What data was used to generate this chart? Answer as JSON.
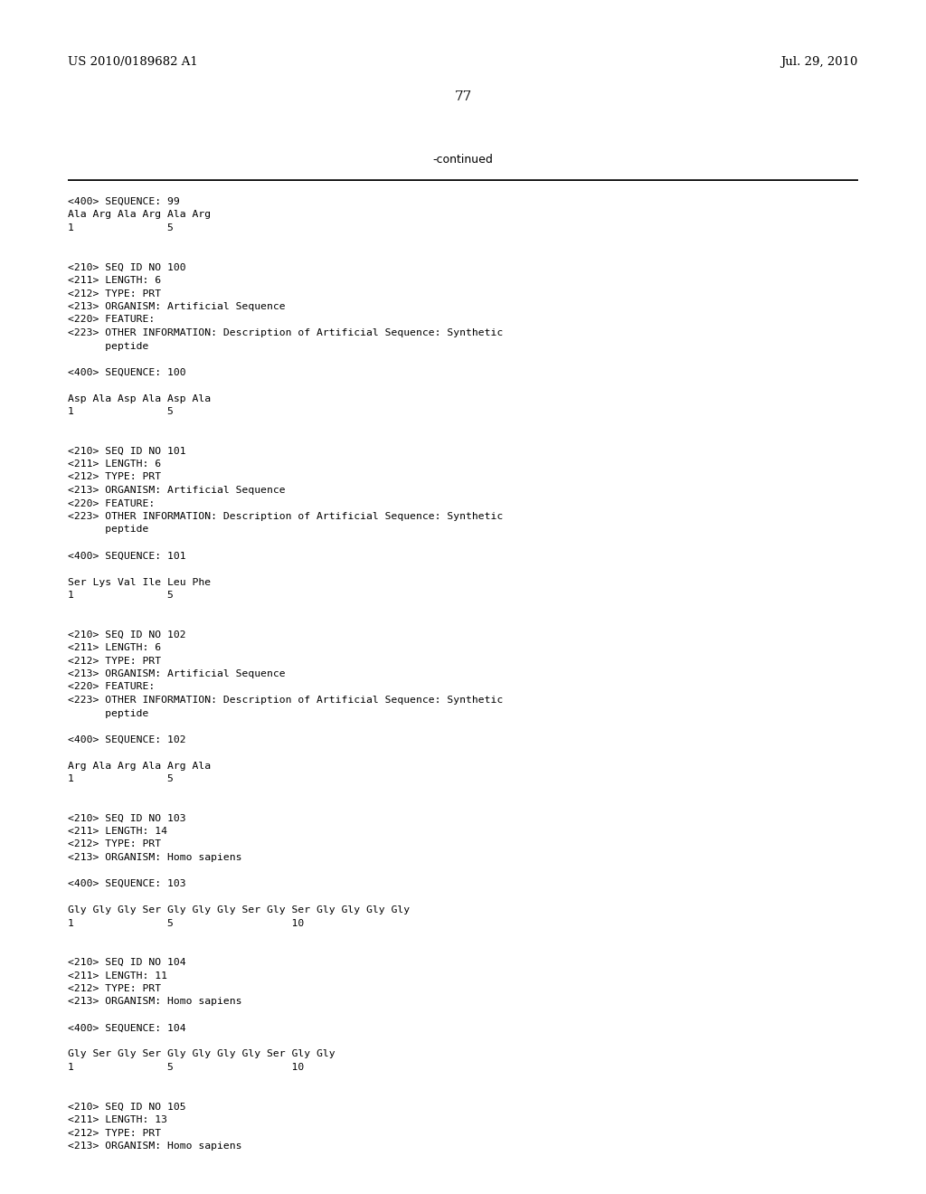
{
  "background_color": "#ffffff",
  "header_left": "US 2010/0189682 A1",
  "header_right": "Jul. 29, 2010",
  "page_number": "77",
  "continued_label": "-continued",
  "content_lines": [
    {
      "text": "<400> SEQUENCE: 99",
      "blank_before": true
    },
    {
      "text": "Ala Arg Ala Arg Ala Arg",
      "blank_before": true
    },
    {
      "text": "1               5",
      "blank_before": false
    },
    {
      "text": "",
      "blank_before": false
    },
    {
      "text": "",
      "blank_before": false
    },
    {
      "text": "<210> SEQ ID NO 100",
      "blank_before": false
    },
    {
      "text": "<211> LENGTH: 6",
      "blank_before": false
    },
    {
      "text": "<212> TYPE: PRT",
      "blank_before": false
    },
    {
      "text": "<213> ORGANISM: Artificial Sequence",
      "blank_before": false
    },
    {
      "text": "<220> FEATURE:",
      "blank_before": false
    },
    {
      "text": "<223> OTHER INFORMATION: Description of Artificial Sequence: Synthetic",
      "blank_before": false
    },
    {
      "text": "      peptide",
      "blank_before": false
    },
    {
      "text": "",
      "blank_before": false
    },
    {
      "text": "<400> SEQUENCE: 100",
      "blank_before": false
    },
    {
      "text": "",
      "blank_before": false
    },
    {
      "text": "Asp Ala Asp Ala Asp Ala",
      "blank_before": false
    },
    {
      "text": "1               5",
      "blank_before": false
    },
    {
      "text": "",
      "blank_before": false
    },
    {
      "text": "",
      "blank_before": false
    },
    {
      "text": "<210> SEQ ID NO 101",
      "blank_before": false
    },
    {
      "text": "<211> LENGTH: 6",
      "blank_before": false
    },
    {
      "text": "<212> TYPE: PRT",
      "blank_before": false
    },
    {
      "text": "<213> ORGANISM: Artificial Sequence",
      "blank_before": false
    },
    {
      "text": "<220> FEATURE:",
      "blank_before": false
    },
    {
      "text": "<223> OTHER INFORMATION: Description of Artificial Sequence: Synthetic",
      "blank_before": false
    },
    {
      "text": "      peptide",
      "blank_before": false
    },
    {
      "text": "",
      "blank_before": false
    },
    {
      "text": "<400> SEQUENCE: 101",
      "blank_before": false
    },
    {
      "text": "",
      "blank_before": false
    },
    {
      "text": "Ser Lys Val Ile Leu Phe",
      "blank_before": false
    },
    {
      "text": "1               5",
      "blank_before": false
    },
    {
      "text": "",
      "blank_before": false
    },
    {
      "text": "",
      "blank_before": false
    },
    {
      "text": "<210> SEQ ID NO 102",
      "blank_before": false
    },
    {
      "text": "<211> LENGTH: 6",
      "blank_before": false
    },
    {
      "text": "<212> TYPE: PRT",
      "blank_before": false
    },
    {
      "text": "<213> ORGANISM: Artificial Sequence",
      "blank_before": false
    },
    {
      "text": "<220> FEATURE:",
      "blank_before": false
    },
    {
      "text": "<223> OTHER INFORMATION: Description of Artificial Sequence: Synthetic",
      "blank_before": false
    },
    {
      "text": "      peptide",
      "blank_before": false
    },
    {
      "text": "",
      "blank_before": false
    },
    {
      "text": "<400> SEQUENCE: 102",
      "blank_before": false
    },
    {
      "text": "",
      "blank_before": false
    },
    {
      "text": "Arg Ala Arg Ala Arg Ala",
      "blank_before": false
    },
    {
      "text": "1               5",
      "blank_before": false
    },
    {
      "text": "",
      "blank_before": false
    },
    {
      "text": "",
      "blank_before": false
    },
    {
      "text": "<210> SEQ ID NO 103",
      "blank_before": false
    },
    {
      "text": "<211> LENGTH: 14",
      "blank_before": false
    },
    {
      "text": "<212> TYPE: PRT",
      "blank_before": false
    },
    {
      "text": "<213> ORGANISM: Homo sapiens",
      "blank_before": false
    },
    {
      "text": "",
      "blank_before": false
    },
    {
      "text": "<400> SEQUENCE: 103",
      "blank_before": false
    },
    {
      "text": "",
      "blank_before": false
    },
    {
      "text": "Gly Gly Gly Ser Gly Gly Gly Ser Gly Ser Gly Gly Gly Gly",
      "blank_before": false
    },
    {
      "text": "1               5                   10",
      "blank_before": false
    },
    {
      "text": "",
      "blank_before": false
    },
    {
      "text": "",
      "blank_before": false
    },
    {
      "text": "<210> SEQ ID NO 104",
      "blank_before": false
    },
    {
      "text": "<211> LENGTH: 11",
      "blank_before": false
    },
    {
      "text": "<212> TYPE: PRT",
      "blank_before": false
    },
    {
      "text": "<213> ORGANISM: Homo sapiens",
      "blank_before": false
    },
    {
      "text": "",
      "blank_before": false
    },
    {
      "text": "<400> SEQUENCE: 104",
      "blank_before": false
    },
    {
      "text": "",
      "blank_before": false
    },
    {
      "text": "Gly Ser Gly Ser Gly Gly Gly Gly Ser Gly Gly",
      "blank_before": false
    },
    {
      "text": "1               5                   10",
      "blank_before": false
    },
    {
      "text": "",
      "blank_before": false
    },
    {
      "text": "",
      "blank_before": false
    },
    {
      "text": "<210> SEQ ID NO 105",
      "blank_before": false
    },
    {
      "text": "<211> LENGTH: 13",
      "blank_before": false
    },
    {
      "text": "<212> TYPE: PRT",
      "blank_before": false
    },
    {
      "text": "<213> ORGANISM: Homo sapiens",
      "blank_before": false
    }
  ]
}
